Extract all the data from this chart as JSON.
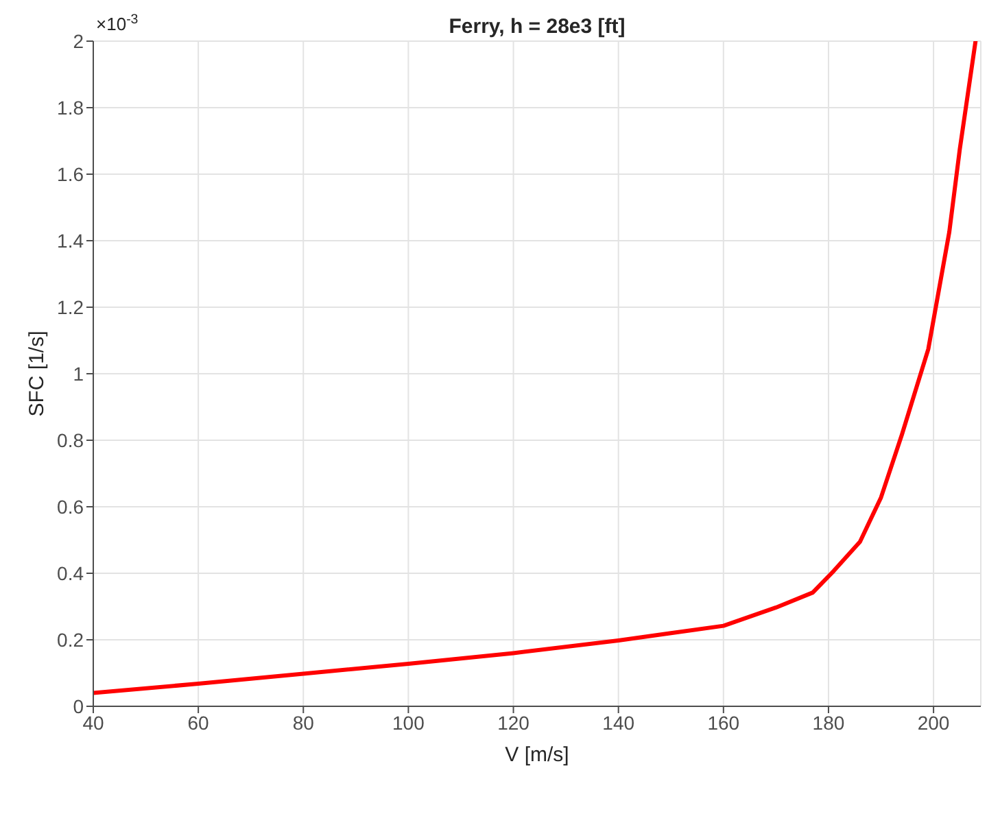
{
  "chart_data": {
    "type": "line",
    "title": "Ferry, h = 28e3 [ft]",
    "xlabel": "V [m/s]",
    "ylabel": "SFC [1/s]",
    "annotations": [
      "×10$^{-3}$"
    ],
    "x": [
      40,
      60,
      80,
      100,
      120,
      140,
      150,
      160,
      170,
      177,
      181,
      186,
      190,
      194,
      199,
      203,
      205,
      208
    ],
    "series": [
      {
        "color": "#ff0000",
        "values": [
          0.04,
          0.068,
          0.098,
          0.128,
          0.16,
          0.198,
          0.22,
          0.242,
          0.297,
          0.342,
          0.407,
          0.495,
          0.628,
          0.818,
          1.074,
          1.426,
          1.675,
          2.0
        ]
      }
    ],
    "xlim": [
      40,
      209
    ],
    "xticks": [
      40,
      60,
      80,
      100,
      120,
      140,
      160,
      180,
      200
    ],
    "ylim": [
      0,
      2
    ],
    "yticks": [
      0,
      0.2,
      0.4,
      0.6,
      0.8,
      1,
      1.2,
      1.4,
      1.6,
      1.8,
      2
    ],
    "grid": true,
    "legend": false,
    "marker": "none",
    "line_style": "solid"
  }
}
